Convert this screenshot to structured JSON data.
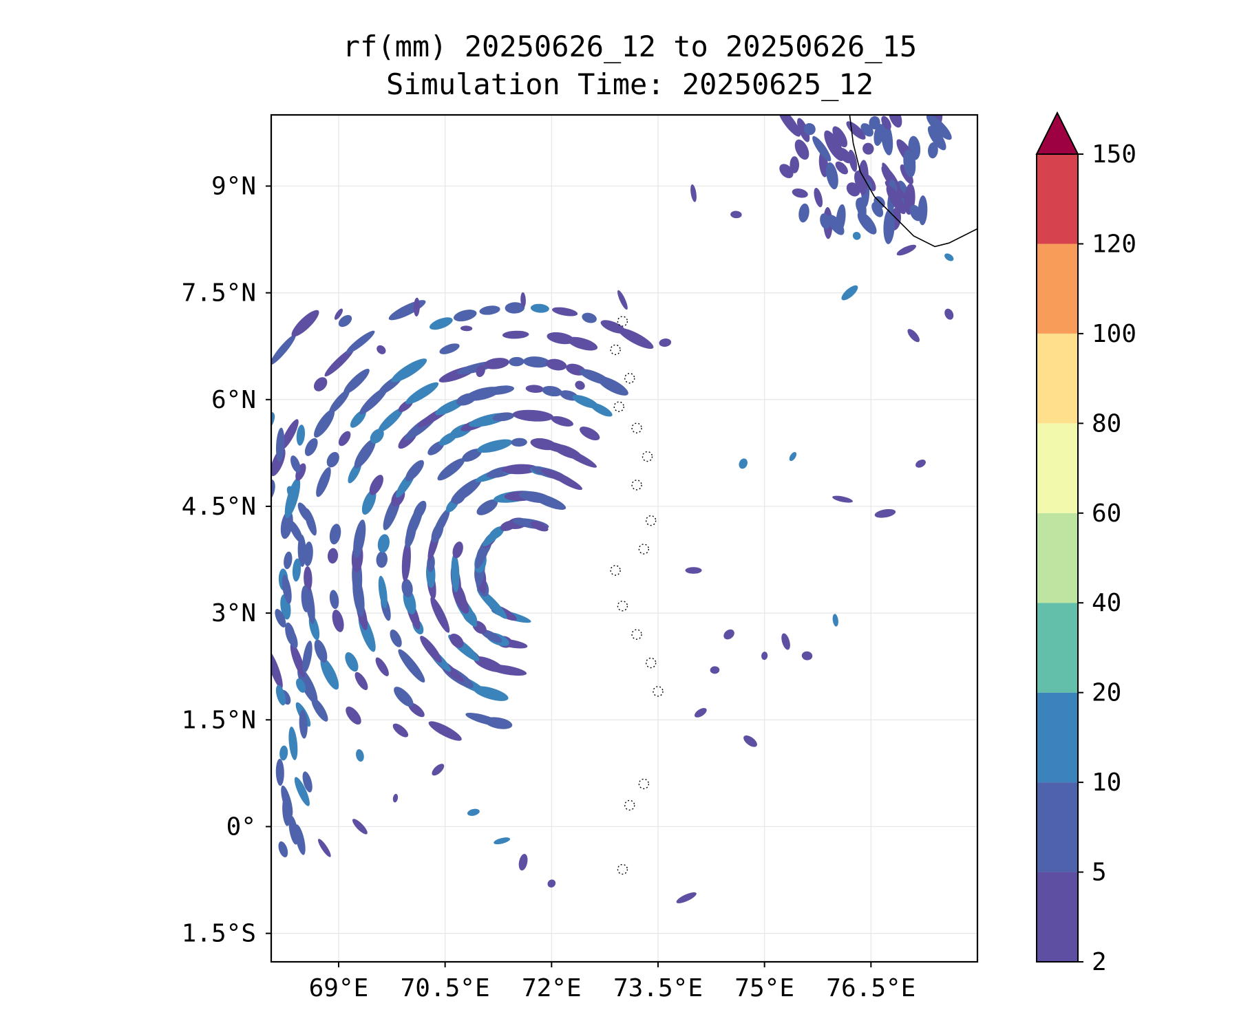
{
  "title": {
    "line1": "rf(mm) 20250626_12 to 20250626_15",
    "line2": "Simulation Time: 20250625_12"
  },
  "map": {
    "projection": "PlateCarree",
    "lon_range": [
      68.05,
      78.0
    ],
    "lat_range": [
      -1.9,
      10.0
    ],
    "x_ticks": [
      {
        "value": 69.0,
        "label": "69°E"
      },
      {
        "value": 70.5,
        "label": "70.5°E"
      },
      {
        "value": 72.0,
        "label": "72°E"
      },
      {
        "value": 73.5,
        "label": "73.5°E"
      },
      {
        "value": 75.0,
        "label": "75°E"
      },
      {
        "value": 76.5,
        "label": "76.5°E"
      }
    ],
    "y_ticks": [
      {
        "value": 9.0,
        "label": "9°N"
      },
      {
        "value": 7.5,
        "label": "7.5°N"
      },
      {
        "value": 6.0,
        "label": "6°N"
      },
      {
        "value": 4.5,
        "label": "4.5°N"
      },
      {
        "value": 3.0,
        "label": "3°N"
      },
      {
        "value": 1.5,
        "label": "1.5°N"
      },
      {
        "value": 0.0,
        "label": "0°"
      },
      {
        "value": -1.5,
        "label": "1.5°S"
      }
    ],
    "grid": true,
    "field": "rainfall accumulation (mm), 3-hour",
    "features": [
      "Indian coastline (Kerala, top-right)",
      "Lakshadweep / Maldives islands (dotted outlines)"
    ]
  },
  "colorbar": {
    "position": "right",
    "extend": "max",
    "levels": [
      {
        "value": 2,
        "label": "2",
        "color": "#5e4fa2"
      },
      {
        "value": 5,
        "label": "5",
        "color": "#4f63ac"
      },
      {
        "value": 10,
        "label": "10",
        "color": "#3b84bb"
      },
      {
        "value": 20,
        "label": "20",
        "color": "#63bfa9"
      },
      {
        "value": 40,
        "label": "40",
        "color": "#bde4a0"
      },
      {
        "value": 60,
        "label": "60",
        "color": "#f2f9ad"
      },
      {
        "value": 80,
        "label": "80",
        "color": "#fddf8c"
      },
      {
        "value": 100,
        "label": "100",
        "color": "#f89d59"
      },
      {
        "value": 120,
        "label": "120",
        "color": "#d6434f"
      },
      {
        "value": 150,
        "label": "150",
        "color": "#9e0142"
      }
    ]
  }
}
